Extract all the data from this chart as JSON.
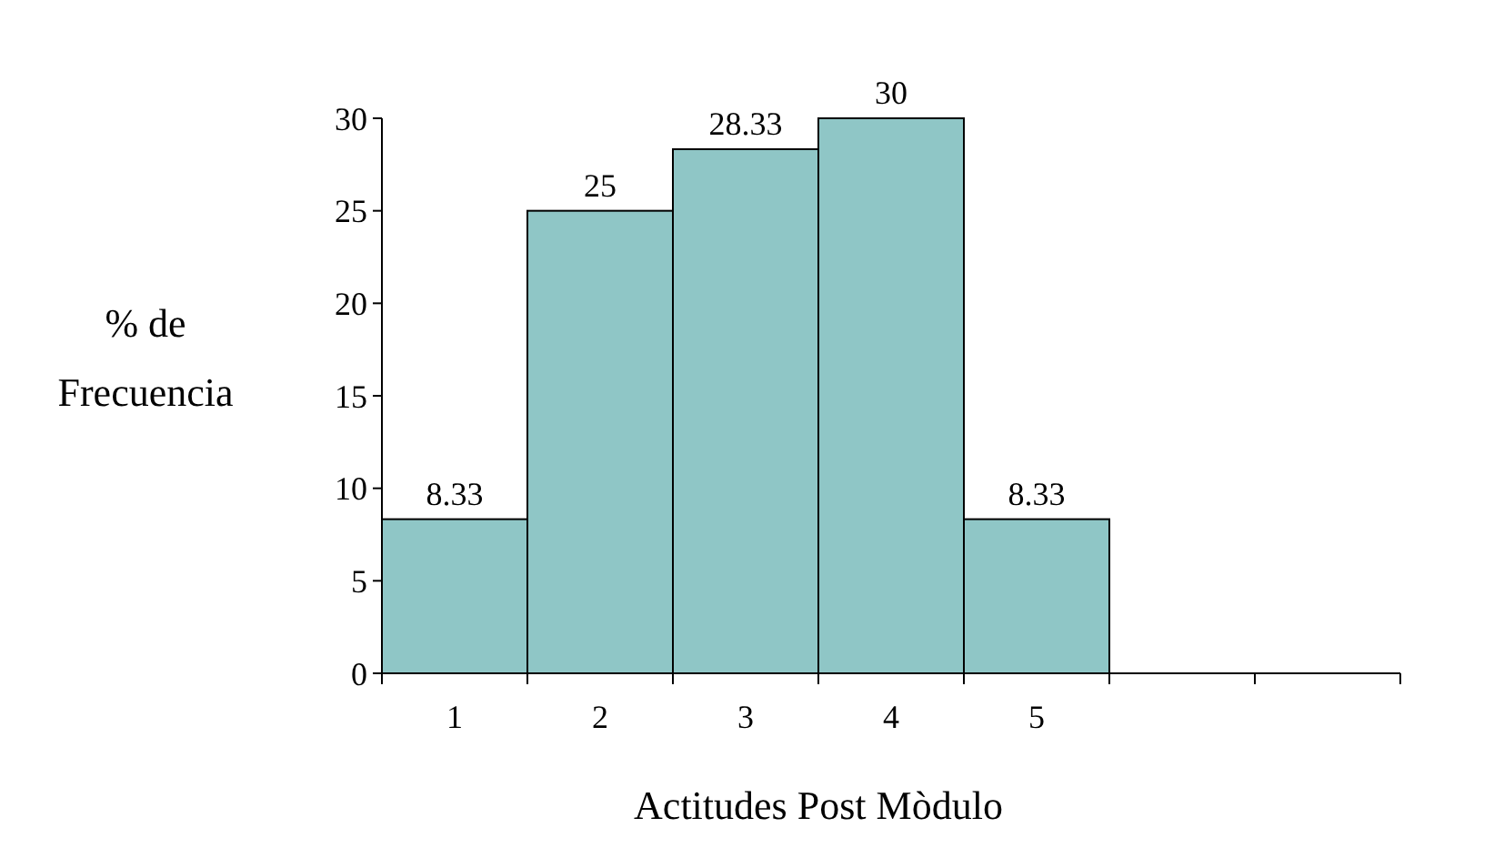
{
  "chart_data": {
    "type": "bar",
    "xlabel": "Actitudes Post Mòdulo",
    "ylabel": "% de Frecuencia",
    "categories": [
      "1",
      "2",
      "3",
      "4",
      "5",
      null,
      null
    ],
    "values": [
      8.33,
      25,
      28.33,
      30,
      8.33,
      null,
      null
    ],
    "color": "#8fc6c6",
    "ylim": [
      0,
      30
    ],
    "yticks": [
      0,
      5,
      10,
      15,
      20,
      25,
      30
    ],
    "data_labels": true,
    "grid": false
  }
}
